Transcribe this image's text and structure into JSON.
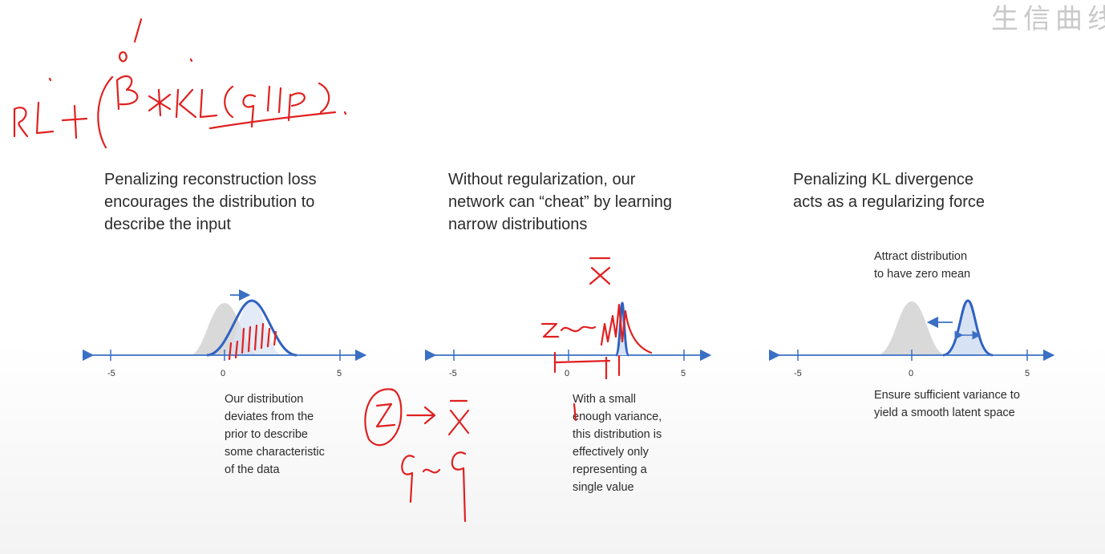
{
  "watermark": "生信曲线",
  "panels": [
    {
      "heading_lines": [
        "Penalizing reconstruction loss",
        "encourages the distribution to",
        "describe the input"
      ],
      "caption_lines": [
        "Our distribution",
        "deviates from the",
        "prior to describe",
        "some characteristic",
        "of the data"
      ],
      "ticks": [
        "-5",
        "0",
        "5"
      ]
    },
    {
      "heading_lines": [
        "Without regularization, our",
        "network can “cheat” by learning",
        "narrow distributions"
      ],
      "caption_lines": [
        "With a small",
        "enough variance,",
        "this distribution is",
        "effectively only",
        "representing a",
        "single value"
      ],
      "ticks": [
        "-5",
        "0",
        "5"
      ]
    },
    {
      "heading_lines": [
        "Penalizing KL divergence",
        "acts as a regularizing force"
      ],
      "top_note_lines": [
        "Attract distribution",
        "to have zero mean"
      ],
      "caption_lines": [
        "Ensure sufficient variance to",
        "yield a smooth latent space"
      ],
      "ticks": [
        "-5",
        "0",
        "5"
      ]
    }
  ],
  "colors": {
    "axis": "#3a6fc4",
    "curve": "#2f62c2",
    "prior": "#d9d9d9",
    "ink": "#e02020"
  }
}
